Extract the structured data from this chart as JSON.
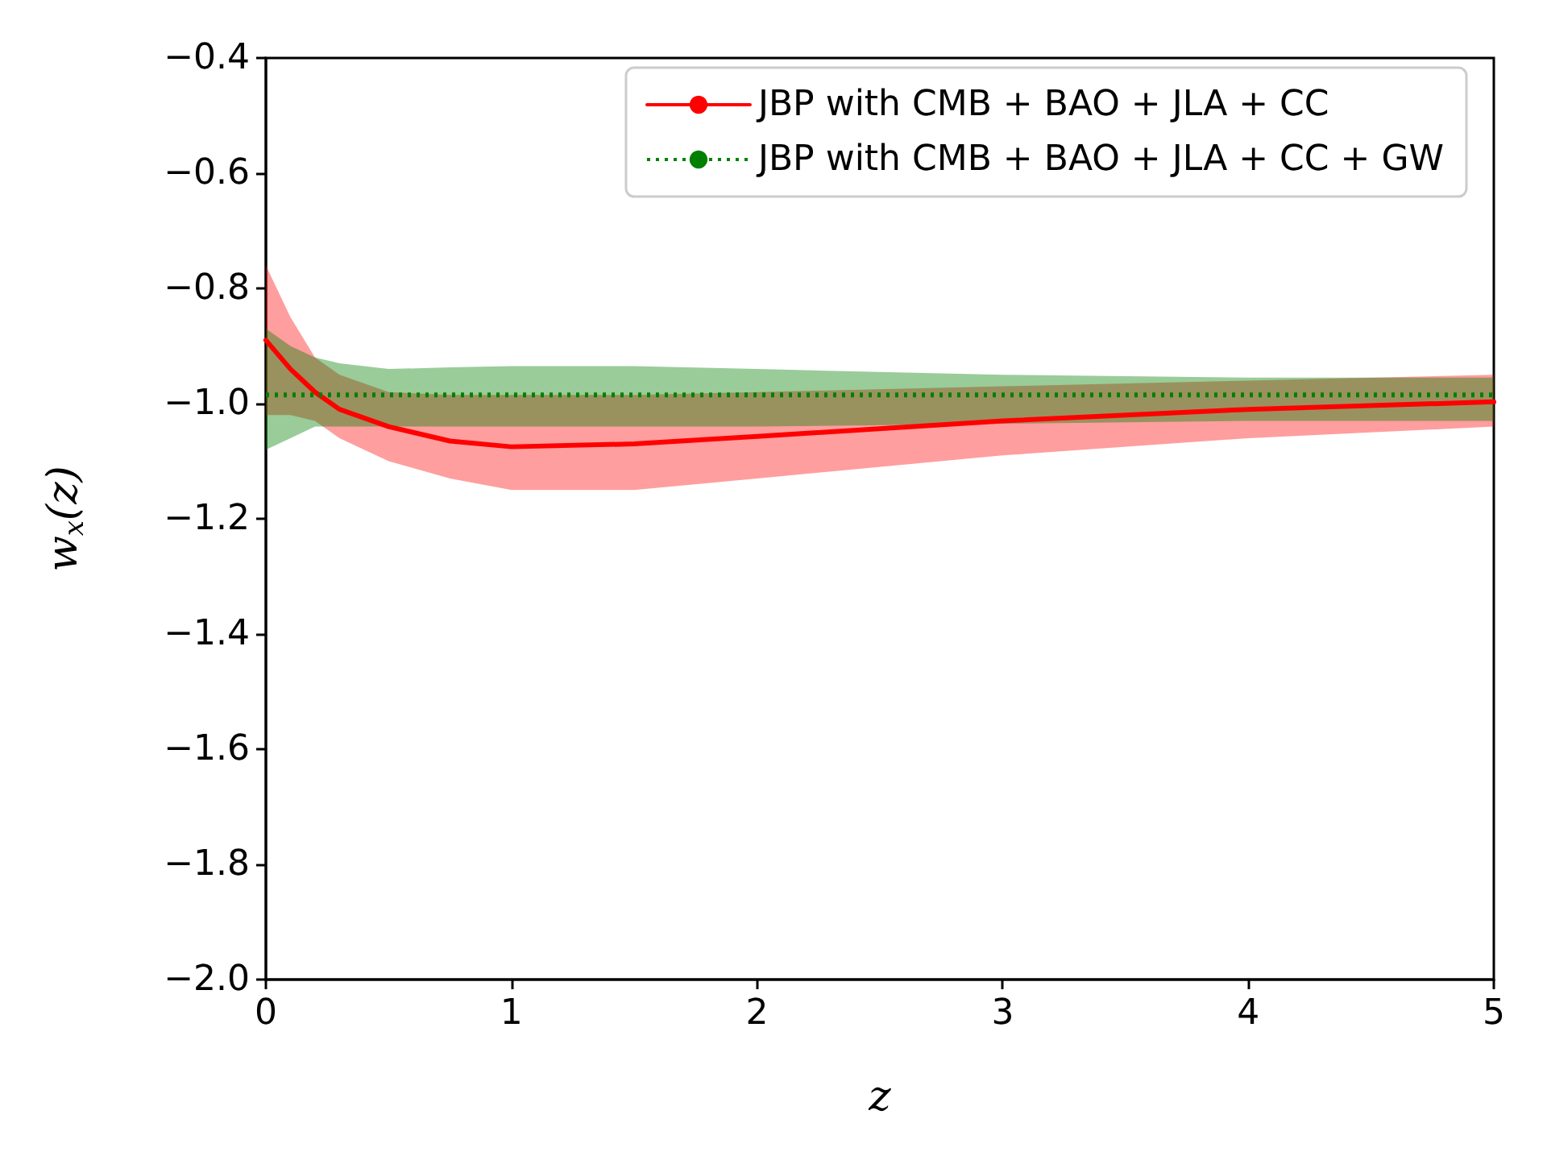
{
  "chart_data": {
    "type": "line",
    "xlabel": "z",
    "ylabel": "w$_{x}$(z)",
    "xlim": [
      0,
      5
    ],
    "xticks": [
      0,
      1,
      2,
      3,
      4,
      5
    ],
    "ylim": [
      -2.0,
      -0.4
    ],
    "yticks": [
      {
        "value": -2.0,
        "label": "−2.0"
      },
      {
        "value": -1.8,
        "label": "−1.8"
      },
      {
        "value": -1.6,
        "label": "−1.6"
      },
      {
        "value": -1.4,
        "label": "−1.4"
      },
      {
        "value": -1.2,
        "label": "−1.2"
      },
      {
        "value": -1.0,
        "label": "−1.0"
      },
      {
        "value": -0.8,
        "label": "−0.8"
      },
      {
        "value": -0.6,
        "label": "−0.6"
      },
      {
        "value": -0.4,
        "label": "−0.4"
      }
    ],
    "grid": false,
    "legend": "top right",
    "marker": "none",
    "series": [
      {
        "name": "JBP with CMB + BAO + JLA + CC",
        "color": "#ff0000",
        "line_style": "solid",
        "x": [
          0,
          0.1,
          0.2,
          0.3,
          0.5,
          0.75,
          1,
          1.5,
          2,
          3,
          4,
          5
        ],
        "values": [
          -0.89,
          -0.94,
          -0.98,
          -1.01,
          -1.04,
          -1.065,
          -1.075,
          -1.07,
          -1.057,
          -1.03,
          -1.01,
          -0.997
        ],
        "upper": [
          -0.76,
          -0.85,
          -0.92,
          -0.95,
          -0.98,
          -0.985,
          -0.985,
          -0.985,
          -0.98,
          -0.97,
          -0.96,
          -0.95
        ],
        "lower": [
          -1.02,
          -1.02,
          -1.03,
          -1.06,
          -1.1,
          -1.13,
          -1.15,
          -1.15,
          -1.13,
          -1.09,
          -1.06,
          -1.04
        ]
      },
      {
        "name": "JBP with CMB + BAO + JLA + CC + GW",
        "color": "#008000",
        "line_style": "dotted",
        "x": [
          0,
          0.1,
          0.2,
          0.3,
          0.5,
          0.75,
          1,
          1.5,
          2,
          3,
          4,
          5
        ],
        "values": [
          -0.985,
          -0.985,
          -0.985,
          -0.985,
          -0.985,
          -0.985,
          -0.985,
          -0.985,
          -0.985,
          -0.985,
          -0.985,
          -0.985
        ],
        "upper": [
          -0.87,
          -0.9,
          -0.92,
          -0.93,
          -0.94,
          -0.937,
          -0.935,
          -0.935,
          -0.94,
          -0.95,
          -0.955,
          -0.955
        ],
        "lower": [
          -1.08,
          -1.06,
          -1.04,
          -1.04,
          -1.04,
          -1.04,
          -1.04,
          -1.04,
          -1.04,
          -1.035,
          -1.03,
          -1.03
        ]
      }
    ]
  }
}
